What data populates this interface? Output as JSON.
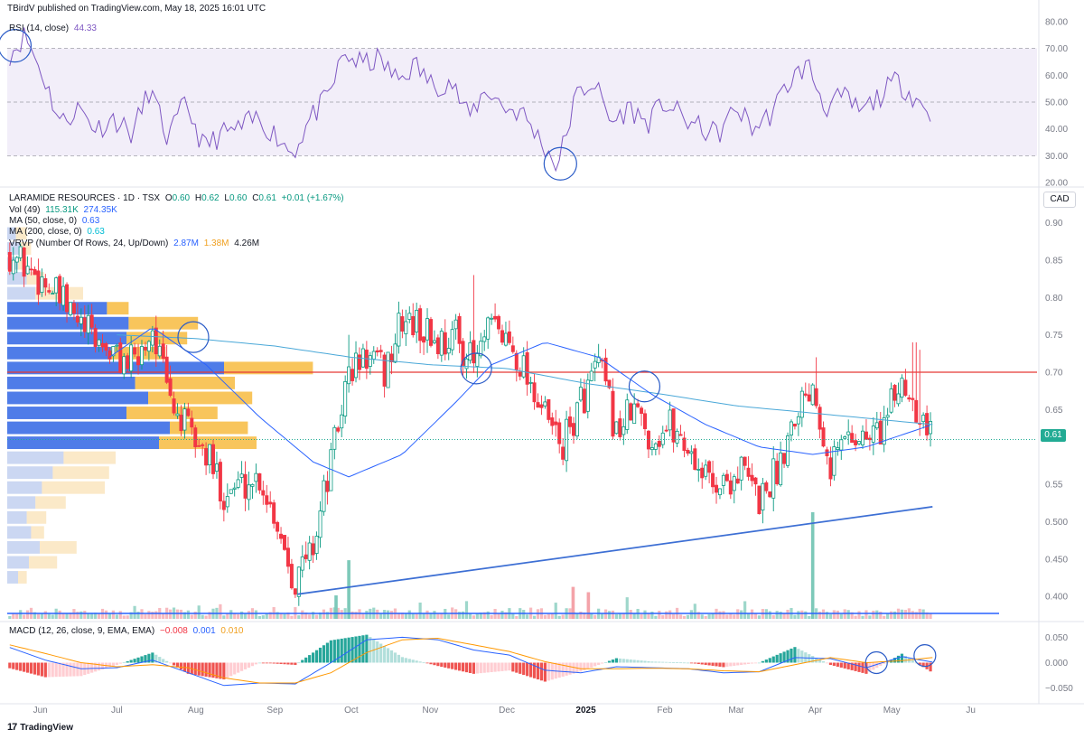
{
  "header": {
    "publisher": "TBirdV published on TradingView.com, May 18, 2025 16:01 UTC"
  },
  "brand": {
    "logo_glyph": "17",
    "name": "TradingView"
  },
  "legend": {
    "rsi": {
      "label": "RSI (14, close)",
      "value": "44.33"
    },
    "symbol": {
      "label": "LARAMIDE RESOURCES · 1D · TSX",
      "o_label": "O",
      "o": "0.60",
      "h_label": "H",
      "h": "0.62",
      "l_label": "L",
      "l": "0.60",
      "c_label": "C",
      "c": "0.61",
      "change": "+0.01 (+1.67%)"
    },
    "vol": {
      "label": "Vol (49)",
      "v1": "115.31K",
      "v2": "274.35K"
    },
    "ma50": {
      "label": "MA (50, close, 0)",
      "value": "0.63"
    },
    "ma200": {
      "label": "MA (200, close, 0)",
      "value": "0.63"
    },
    "vrvp": {
      "label": "VRVP (Number Of Rows, 24, Up/Down)",
      "up": "2.87M",
      "down": "1.38M",
      "total": "4.26M"
    },
    "macd": {
      "label": "MACD (12, 26, close, 9, EMA, EMA)",
      "hist": "−0.008",
      "macd": "0.001",
      "signal": "0.010"
    }
  },
  "currency_label": "CAD",
  "last_price_label": "0.61",
  "colors": {
    "up": "#089981",
    "down": "#f23645",
    "ma50": "#2962ff",
    "ma200": "#4aa8d8",
    "rsi": "#7e57c2",
    "macd_line": "#2962ff",
    "signal_line": "#ff9800",
    "resistance": "#e53935",
    "trendline": "#3d6fd4",
    "circle": "#2a5bc7"
  },
  "chart_data": [
    {
      "id": "price",
      "type": "candlestick",
      "x_ticks": [
        "Jun",
        "Jul",
        "Aug",
        "Sep",
        "Oct",
        "Nov",
        "Dec",
        "2025",
        "Feb",
        "Mar",
        "Apr",
        "May",
        "Ju"
      ],
      "y_ticks": [
        "0.90",
        "0.85",
        "0.80",
        "0.75",
        "0.70",
        "0.65",
        "0.60",
        "0.55",
        "0.500",
        "0.450",
        "0.400"
      ],
      "ylim": [
        0.37,
        0.92
      ],
      "last_close": 0.61,
      "resistance_level": 0.7,
      "trendline": {
        "from": {
          "date": "2024-09-10",
          "value": 0.403
        },
        "to": {
          "date": "2025-05-17",
          "value": 0.52
        }
      },
      "close_path": [
        {
          "d": "2024-05-20",
          "c": 0.86
        },
        {
          "d": "2024-05-27",
          "c": 0.84
        },
        {
          "d": "2024-06-03",
          "c": 0.82
        },
        {
          "d": "2024-06-10",
          "c": 0.79
        },
        {
          "d": "2024-06-17",
          "c": 0.76
        },
        {
          "d": "2024-06-24",
          "c": 0.74
        },
        {
          "d": "2024-07-01",
          "c": 0.72
        },
        {
          "d": "2024-07-08",
          "c": 0.71
        },
        {
          "d": "2024-07-15",
          "c": 0.76
        },
        {
          "d": "2024-07-22",
          "c": 0.66
        },
        {
          "d": "2024-07-29",
          "c": 0.62
        },
        {
          "d": "2024-08-05",
          "c": 0.59
        },
        {
          "d": "2024-08-12",
          "c": 0.54
        },
        {
          "d": "2024-08-19",
          "c": 0.55
        },
        {
          "d": "2024-08-26",
          "c": 0.56
        },
        {
          "d": "2024-09-02",
          "c": 0.5
        },
        {
          "d": "2024-09-09",
          "c": 0.42
        },
        {
          "d": "2024-09-16",
          "c": 0.47
        },
        {
          "d": "2024-09-23",
          "c": 0.58
        },
        {
          "d": "2024-09-30",
          "c": 0.7
        },
        {
          "d": "2024-10-07",
          "c": 0.72
        },
        {
          "d": "2024-10-14",
          "c": 0.7
        },
        {
          "d": "2024-10-21",
          "c": 0.77
        },
        {
          "d": "2024-10-28",
          "c": 0.76
        },
        {
          "d": "2024-11-04",
          "c": 0.74
        },
        {
          "d": "2024-11-11",
          "c": 0.75
        },
        {
          "d": "2024-11-18",
          "c": 0.71
        },
        {
          "d": "2024-11-25",
          "c": 0.76
        },
        {
          "d": "2024-12-02",
          "c": 0.74
        },
        {
          "d": "2024-12-09",
          "c": 0.7
        },
        {
          "d": "2024-12-16",
          "c": 0.64
        },
        {
          "d": "2024-12-23",
          "c": 0.6
        },
        {
          "d": "2024-12-30",
          "c": 0.66
        },
        {
          "d": "2025-01-06",
          "c": 0.71
        },
        {
          "d": "2025-01-13",
          "c": 0.62
        },
        {
          "d": "2025-01-20",
          "c": 0.65
        },
        {
          "d": "2025-01-27",
          "c": 0.61
        },
        {
          "d": "2025-02-03",
          "c": 0.63
        },
        {
          "d": "2025-02-10",
          "c": 0.6
        },
        {
          "d": "2025-02-17",
          "c": 0.56
        },
        {
          "d": "2025-02-24",
          "c": 0.55
        },
        {
          "d": "2025-03-03",
          "c": 0.57
        },
        {
          "d": "2025-03-10",
          "c": 0.53
        },
        {
          "d": "2025-03-17",
          "c": 0.57
        },
        {
          "d": "2025-03-24",
          "c": 0.65
        },
        {
          "d": "2025-03-31",
          "c": 0.69
        },
        {
          "d": "2025-04-07",
          "c": 0.58
        },
        {
          "d": "2025-04-14",
          "c": 0.62
        },
        {
          "d": "2025-04-21",
          "c": 0.61
        },
        {
          "d": "2025-04-28",
          "c": 0.63
        },
        {
          "d": "2025-05-05",
          "c": 0.69
        },
        {
          "d": "2025-05-12",
          "c": 0.65
        },
        {
          "d": "2025-05-17",
          "c": 0.61
        }
      ],
      "spikes": [
        {
          "d": "2024-11-18",
          "high": 0.83
        },
        {
          "d": "2024-09-30",
          "high": 0.75
        },
        {
          "d": "2025-04-01",
          "high": 0.72
        },
        {
          "d": "2025-05-10",
          "high": 0.74
        },
        {
          "d": "2025-05-12",
          "high": 0.73
        }
      ],
      "ma50": [
        {
          "d": "2024-06-28",
          "v": 0.72
        },
        {
          "d": "2024-07-15",
          "v": 0.76
        },
        {
          "d": "2024-08-05",
          "v": 0.71
        },
        {
          "d": "2024-08-26",
          "v": 0.64
        },
        {
          "d": "2024-09-16",
          "v": 0.58
        },
        {
          "d": "2024-09-30",
          "v": 0.56
        },
        {
          "d": "2024-10-21",
          "v": 0.59
        },
        {
          "d": "2024-11-11",
          "v": 0.66
        },
        {
          "d": "2024-11-25",
          "v": 0.71
        },
        {
          "d": "2024-12-16",
          "v": 0.74
        },
        {
          "d": "2025-01-06",
          "v": 0.72
        },
        {
          "d": "2025-01-27",
          "v": 0.67
        },
        {
          "d": "2025-02-17",
          "v": 0.63
        },
        {
          "d": "2025-03-10",
          "v": 0.6
        },
        {
          "d": "2025-03-31",
          "v": 0.59
        },
        {
          "d": "2025-04-21",
          "v": 0.6
        },
        {
          "d": "2025-05-17",
          "v": 0.63
        }
      ],
      "ma200": [
        {
          "d": "2024-07-01",
          "v": 0.75
        },
        {
          "d": "2024-08-01",
          "v": 0.745
        },
        {
          "d": "2024-09-01",
          "v": 0.735
        },
        {
          "d": "2024-10-01",
          "v": 0.72
        },
        {
          "d": "2024-11-01",
          "v": 0.71
        },
        {
          "d": "2024-12-01",
          "v": 0.705
        },
        {
          "d": "2025-01-01",
          "v": 0.685
        },
        {
          "d": "2025-02-01",
          "v": 0.67
        },
        {
          "d": "2025-03-01",
          "v": 0.655
        },
        {
          "d": "2025-04-01",
          "v": 0.645
        },
        {
          "d": "2025-05-17",
          "v": 0.63
        }
      ],
      "annotated_circles": [
        {
          "d": "2024-07-31",
          "v": 0.747
        },
        {
          "d": "2024-11-19",
          "v": 0.705
        },
        {
          "d": "2025-01-24",
          "v": 0.681
        }
      ],
      "volume_profile": [
        {
          "price": 0.885,
          "up": 0.04,
          "down": 0.05
        },
        {
          "price": 0.865,
          "up": 0.06,
          "down": 0.05
        },
        {
          "price": 0.845,
          "up": 0.05,
          "down": 0.04
        },
        {
          "price": 0.825,
          "up": 0.09,
          "down": 0.08
        },
        {
          "price": 0.805,
          "up": 0.13,
          "down": 0.22
        },
        {
          "price": 0.785,
          "up": 0.46,
          "down": 0.1
        },
        {
          "price": 0.765,
          "up": 0.56,
          "down": 0.32
        },
        {
          "price": 0.745,
          "up": 0.55,
          "down": 0.28
        },
        {
          "price": 0.725,
          "up": 0.48,
          "down": 0.25
        },
        {
          "price": 0.705,
          "up": 1.0,
          "down": 0.41
        },
        {
          "price": 0.685,
          "up": 0.59,
          "down": 0.46
        },
        {
          "price": 0.665,
          "up": 0.65,
          "down": 0.48
        },
        {
          "price": 0.645,
          "up": 0.55,
          "down": 0.42
        },
        {
          "price": 0.625,
          "up": 0.75,
          "down": 0.36
        },
        {
          "price": 0.605,
          "up": 0.7,
          "down": 0.45
        },
        {
          "price": 0.585,
          "up": 0.26,
          "down": 0.24
        },
        {
          "price": 0.565,
          "up": 0.21,
          "down": 0.26
        },
        {
          "price": 0.545,
          "up": 0.16,
          "down": 0.29
        },
        {
          "price": 0.525,
          "up": 0.13,
          "down": 0.14
        },
        {
          "price": 0.505,
          "up": 0.09,
          "down": 0.09
        },
        {
          "price": 0.485,
          "up": 0.11,
          "down": 0.06
        },
        {
          "price": 0.465,
          "up": 0.15,
          "down": 0.17
        },
        {
          "price": 0.445,
          "up": 0.1,
          "down": 0.13
        },
        {
          "price": 0.425,
          "up": 0.05,
          "down": 0.04
        }
      ],
      "volume_spikes": [
        {
          "d": "2024-09-30",
          "v": 0.55
        },
        {
          "d": "2025-03-31",
          "v": 1.0
        },
        {
          "d": "2024-12-27",
          "v": 0.3
        },
        {
          "d": "2025-01-02",
          "v": 0.25
        },
        {
          "d": "2024-09-25",
          "v": 0.22
        }
      ]
    },
    {
      "id": "rsi",
      "type": "line",
      "y_ticks": [
        "80.00",
        "70.00",
        "60.00",
        "50.00",
        "40.00",
        "30.00",
        "20.00"
      ],
      "ylim": [
        18,
        82
      ],
      "bands": [
        30,
        50,
        70
      ],
      "last": 44.33,
      "points": [
        {
          "d": "2024-05-20",
          "v": 68
        },
        {
          "d": "2024-05-26",
          "v": 75
        },
        {
          "d": "2024-06-02",
          "v": 60
        },
        {
          "d": "2024-06-09",
          "v": 42
        },
        {
          "d": "2024-06-16",
          "v": 48
        },
        {
          "d": "2024-06-23",
          "v": 40
        },
        {
          "d": "2024-06-30",
          "v": 44
        },
        {
          "d": "2024-07-07",
          "v": 38
        },
        {
          "d": "2024-07-14",
          "v": 55
        },
        {
          "d": "2024-07-21",
          "v": 36
        },
        {
          "d": "2024-07-28",
          "v": 50
        },
        {
          "d": "2024-08-04",
          "v": 33
        },
        {
          "d": "2024-08-11",
          "v": 38
        },
        {
          "d": "2024-08-18",
          "v": 40
        },
        {
          "d": "2024-08-25",
          "v": 44
        },
        {
          "d": "2024-09-01",
          "v": 38
        },
        {
          "d": "2024-09-08",
          "v": 31
        },
        {
          "d": "2024-09-15",
          "v": 44
        },
        {
          "d": "2024-09-22",
          "v": 52
        },
        {
          "d": "2024-09-28",
          "v": 68
        },
        {
          "d": "2024-10-05",
          "v": 64
        },
        {
          "d": "2024-10-12",
          "v": 66
        },
        {
          "d": "2024-10-19",
          "v": 58
        },
        {
          "d": "2024-10-26",
          "v": 64
        },
        {
          "d": "2024-11-02",
          "v": 56
        },
        {
          "d": "2024-11-09",
          "v": 58
        },
        {
          "d": "2024-11-16",
          "v": 44
        },
        {
          "d": "2024-11-23",
          "v": 55
        },
        {
          "d": "2024-11-30",
          "v": 48
        },
        {
          "d": "2024-12-07",
          "v": 46
        },
        {
          "d": "2024-12-14",
          "v": 36
        },
        {
          "d": "2024-12-21",
          "v": 26
        },
        {
          "d": "2024-12-28",
          "v": 52
        },
        {
          "d": "2025-01-04",
          "v": 58
        },
        {
          "d": "2025-01-11",
          "v": 42
        },
        {
          "d": "2025-01-18",
          "v": 48
        },
        {
          "d": "2025-01-25",
          "v": 42
        },
        {
          "d": "2025-02-01",
          "v": 50
        },
        {
          "d": "2025-02-08",
          "v": 44
        },
        {
          "d": "2025-02-15",
          "v": 40
        },
        {
          "d": "2025-02-22",
          "v": 38
        },
        {
          "d": "2025-03-01",
          "v": 48
        },
        {
          "d": "2025-03-08",
          "v": 40
        },
        {
          "d": "2025-03-15",
          "v": 46
        },
        {
          "d": "2025-03-22",
          "v": 58
        },
        {
          "d": "2025-03-29",
          "v": 64
        },
        {
          "d": "2025-04-05",
          "v": 48
        },
        {
          "d": "2025-04-12",
          "v": 52
        },
        {
          "d": "2025-04-19",
          "v": 46
        },
        {
          "d": "2025-04-26",
          "v": 52
        },
        {
          "d": "2025-05-03",
          "v": 58
        },
        {
          "d": "2025-05-10",
          "v": 52
        },
        {
          "d": "2025-05-17",
          "v": 44
        }
      ],
      "annotated_circles": [
        {
          "d": "2024-05-22",
          "v": 71
        },
        {
          "d": "2024-12-22",
          "v": 27
        }
      ]
    },
    {
      "id": "macd",
      "type": "histogram+line",
      "y_ticks": [
        "0.050",
        "0.000",
        "−0.050"
      ],
      "ylim": [
        -0.065,
        0.065
      ],
      "last": {
        "hist": -0.008,
        "macd": 0.001,
        "signal": 0.01
      },
      "macd_line": [
        {
          "d": "2024-05-20",
          "v": 0.03
        },
        {
          "d": "2024-06-03",
          "v": 0.005
        },
        {
          "d": "2024-06-17",
          "v": -0.012
        },
        {
          "d": "2024-07-01",
          "v": -0.01
        },
        {
          "d": "2024-07-15",
          "v": 0.005
        },
        {
          "d": "2024-07-29",
          "v": -0.02
        },
        {
          "d": "2024-08-12",
          "v": -0.045
        },
        {
          "d": "2024-08-26",
          "v": -0.04
        },
        {
          "d": "2024-09-09",
          "v": -0.042
        },
        {
          "d": "2024-09-23",
          "v": 0.0
        },
        {
          "d": "2024-10-07",
          "v": 0.045
        },
        {
          "d": "2024-10-21",
          "v": 0.05
        },
        {
          "d": "2024-11-04",
          "v": 0.045
        },
        {
          "d": "2024-11-18",
          "v": 0.025
        },
        {
          "d": "2024-12-02",
          "v": 0.015
        },
        {
          "d": "2024-12-16",
          "v": -0.015
        },
        {
          "d": "2024-12-30",
          "v": -0.02
        },
        {
          "d": "2025-01-13",
          "v": -0.008
        },
        {
          "d": "2025-01-27",
          "v": -0.01
        },
        {
          "d": "2025-02-10",
          "v": -0.012
        },
        {
          "d": "2025-02-24",
          "v": -0.02
        },
        {
          "d": "2025-03-10",
          "v": -0.018
        },
        {
          "d": "2025-03-24",
          "v": 0.01
        },
        {
          "d": "2025-04-07",
          "v": 0.008
        },
        {
          "d": "2025-04-21",
          "v": -0.01
        },
        {
          "d": "2025-05-05",
          "v": 0.012
        },
        {
          "d": "2025-05-17",
          "v": 0.001
        }
      ],
      "signal_line": [
        {
          "d": "2024-05-20",
          "v": 0.035
        },
        {
          "d": "2024-06-03",
          "v": 0.018
        },
        {
          "d": "2024-06-17",
          "v": 0.0
        },
        {
          "d": "2024-07-01",
          "v": -0.008
        },
        {
          "d": "2024-07-15",
          "v": -0.004
        },
        {
          "d": "2024-07-29",
          "v": -0.01
        },
        {
          "d": "2024-08-12",
          "v": -0.03
        },
        {
          "d": "2024-08-26",
          "v": -0.04
        },
        {
          "d": "2024-09-09",
          "v": -0.04
        },
        {
          "d": "2024-09-23",
          "v": -0.02
        },
        {
          "d": "2024-10-07",
          "v": 0.02
        },
        {
          "d": "2024-10-21",
          "v": 0.045
        },
        {
          "d": "2024-11-04",
          "v": 0.048
        },
        {
          "d": "2024-11-18",
          "v": 0.035
        },
        {
          "d": "2024-12-02",
          "v": 0.022
        },
        {
          "d": "2024-12-16",
          "v": 0.002
        },
        {
          "d": "2024-12-30",
          "v": -0.012
        },
        {
          "d": "2025-01-13",
          "v": -0.012
        },
        {
          "d": "2025-01-27",
          "v": -0.011
        },
        {
          "d": "2025-02-10",
          "v": -0.012
        },
        {
          "d": "2025-02-24",
          "v": -0.016
        },
        {
          "d": "2025-03-10",
          "v": -0.018
        },
        {
          "d": "2025-03-24",
          "v": -0.004
        },
        {
          "d": "2025-04-07",
          "v": 0.01
        },
        {
          "d": "2025-04-21",
          "v": 0.0
        },
        {
          "d": "2025-05-05",
          "v": 0.004
        },
        {
          "d": "2025-05-17",
          "v": 0.01
        }
      ],
      "annotated_circles": [
        {
          "d": "2025-04-25",
          "v": 0.0
        },
        {
          "d": "2025-05-14",
          "v": 0.014
        }
      ]
    }
  ]
}
